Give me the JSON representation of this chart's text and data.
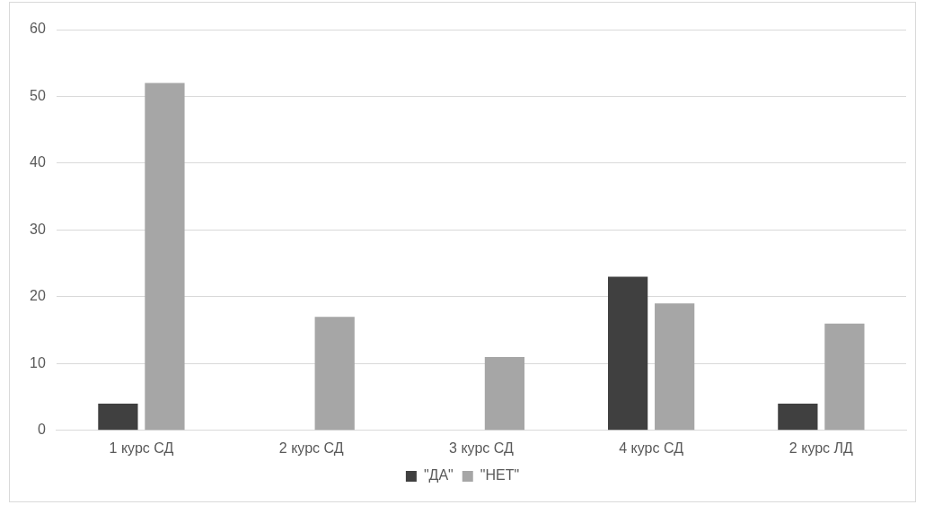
{
  "chart_data": {
    "type": "bar",
    "categories": [
      "1 курс СД",
      "2 курс СД",
      "3 курс СД",
      "4 курс СД",
      "2 курс ЛД"
    ],
    "series": [
      {
        "name": "\"ДА\"",
        "color": "#404040",
        "values": [
          4,
          0,
          0,
          23,
          4
        ]
      },
      {
        "name": "\"НЕТ\"",
        "color": "#a6a6a6",
        "values": [
          52,
          17,
          11,
          19,
          16
        ]
      }
    ],
    "ylim": [
      0,
      60
    ],
    "yticks": [
      0,
      10,
      20,
      30,
      40,
      50,
      60
    ],
    "grid": "y",
    "legend": "bottom"
  }
}
